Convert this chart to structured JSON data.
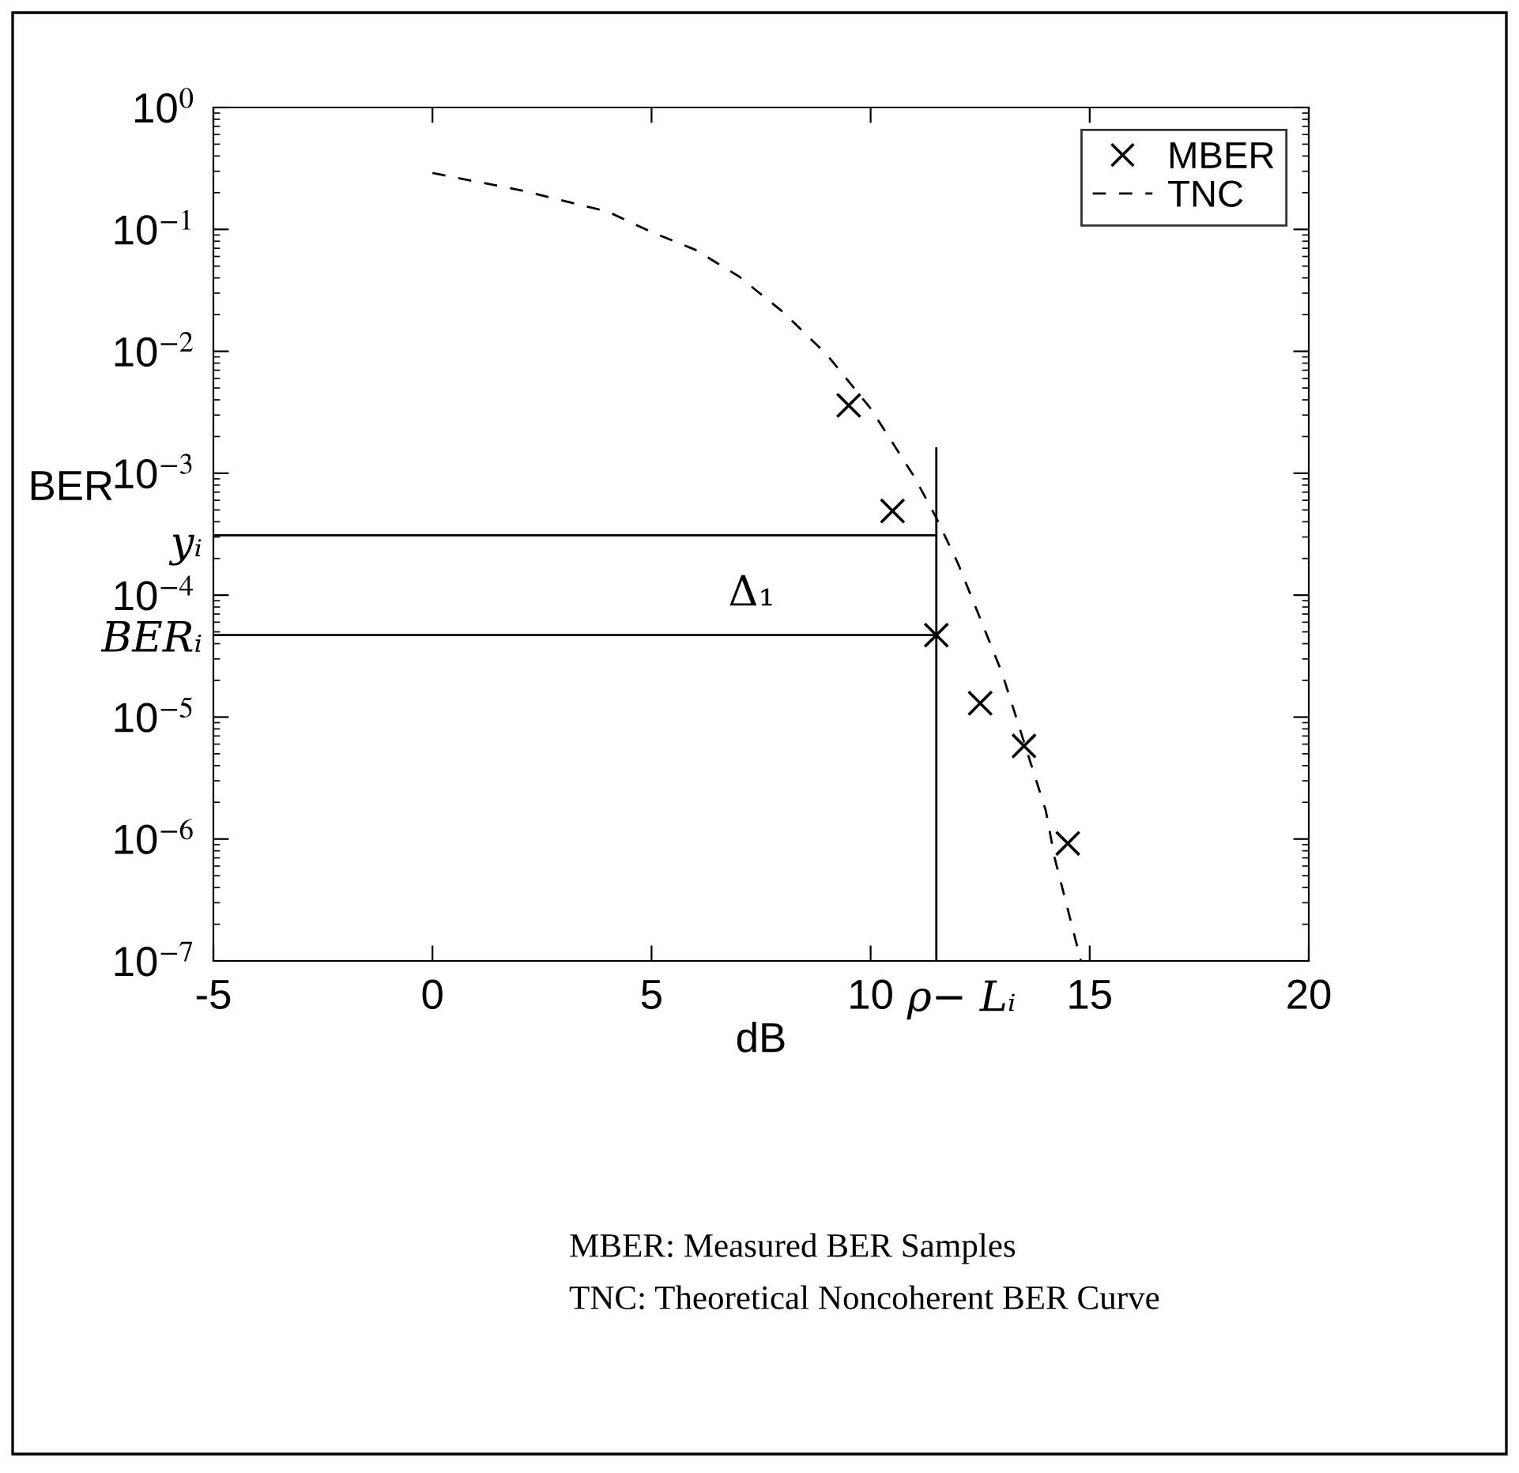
{
  "chart_data": {
    "type": "line",
    "xlabel": "dB",
    "ylabel": "BER",
    "log": "y",
    "xlim": [
      -5,
      20
    ],
    "ylim": [
      1e-07,
      1
    ],
    "xticks": [
      -5,
      0,
      5,
      10,
      15,
      20
    ],
    "yticks": [
      {
        "value": 1,
        "label": "10$^{0}$"
      },
      {
        "value": 0.1,
        "label": "10$^{−1}$"
      },
      {
        "value": 0.01,
        "label": "10$^{−2}$"
      },
      {
        "value": 0.001,
        "label": "10$^{−3}$"
      },
      {
        "value": 0.0001,
        "label": "10$^{−4}$"
      },
      {
        "value": 1e-05,
        "label": "10$^{−5}$"
      },
      {
        "value": 1e-06,
        "label": "10$^{−6}$"
      },
      {
        "value": 1e-07,
        "label": "10$^{−7}$"
      }
    ],
    "grid": false,
    "legend": "top right",
    "series": [
      {
        "name": "MBER",
        "type": "scatter",
        "marker": "cross",
        "color": "#000000",
        "x": [
          9.5,
          10.5,
          11.5,
          12.5,
          13.5,
          14.5
        ],
        "values": [
          0.0036,
          0.00049,
          4.7e-05,
          1.3e-05,
          5.8e-06,
          9.2e-07
        ]
      },
      {
        "name": "TNC",
        "line_style": "dashed",
        "marker": "none",
        "color": "#000000",
        "x": [
          0,
          2,
          4,
          5,
          6,
          7,
          8,
          9,
          10,
          11,
          11.5,
          12,
          13,
          14,
          14.2,
          14.8
        ],
        "values": [
          0.29,
          0.21,
          0.14,
          0.095,
          0.068,
          0.041,
          0.021,
          0.0094,
          0.0034,
          0.00093,
          0.00043,
          0.00018,
          2.3e-05,
          1.7e-06,
          7e-07,
          1e-07
        ]
      },
      {
        "line_style": "solid",
        "marker": "none",
        "color": "#000000",
        "x": [
          -5,
          11.5
        ],
        "values": [
          0.00031,
          0.00031
        ]
      },
      {
        "line_style": "solid",
        "marker": "none",
        "color": "#000000",
        "x": [
          -5,
          11.5
        ],
        "values": [
          4.7e-05,
          4.7e-05
        ]
      },
      {
        "line_style": "solid",
        "marker": "none",
        "color": "#000000",
        "x": [
          11.5,
          11.5
        ],
        "values": [
          1e-07,
          0.0016
        ]
      }
    ],
    "annotations": [
      "yᵢ",
      "BERᵢ",
      "ρ− Lᵢ",
      "Δ₁",
      "MBER: Measured BER Samples",
      "TNC: Theoretical Noncoherent BER Curve"
    ]
  }
}
